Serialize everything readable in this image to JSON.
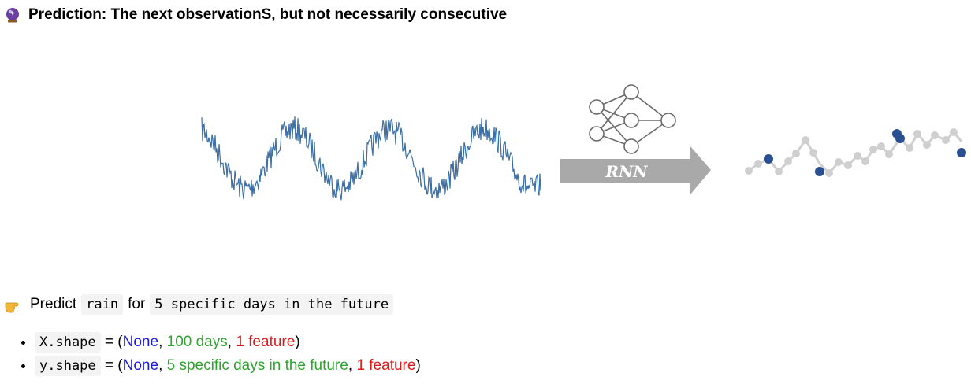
{
  "heading": {
    "icon": "crystal-ball-icon",
    "text_before": "Prediction: The next observation",
    "text_emph": "S",
    "text_after": ", but not necessarily consecutive"
  },
  "figure": {
    "arrow_label": "RNN",
    "colors": {
      "series": "#3a6fa8",
      "arrow": "#a9a9a9",
      "known_points": "#cfcfcf",
      "target_points": "#2a4f93"
    },
    "icons": [
      "time-series-waveform",
      "neural-network-icon",
      "rnn-arrow",
      "prediction-points"
    ]
  },
  "instruction": {
    "icon": "pointing-hand-icon",
    "predict": "Predict",
    "target_code": "rain",
    "for": "for",
    "horizon_code": "5 specific days in the future"
  },
  "shapes": [
    {
      "name_code": "X.shape",
      "eq": " = (",
      "none": "None",
      "sep1": ", ",
      "steps": "100 days",
      "sep2": ", ",
      "features": "1 feature",
      "close": ")"
    },
    {
      "name_code": "y.shape",
      "eq": " = (",
      "none": "None",
      "sep1": ", ",
      "steps": "5 specific days in the future",
      "sep2": ", ",
      "features": "1 feature",
      "close": ")"
    }
  ]
}
